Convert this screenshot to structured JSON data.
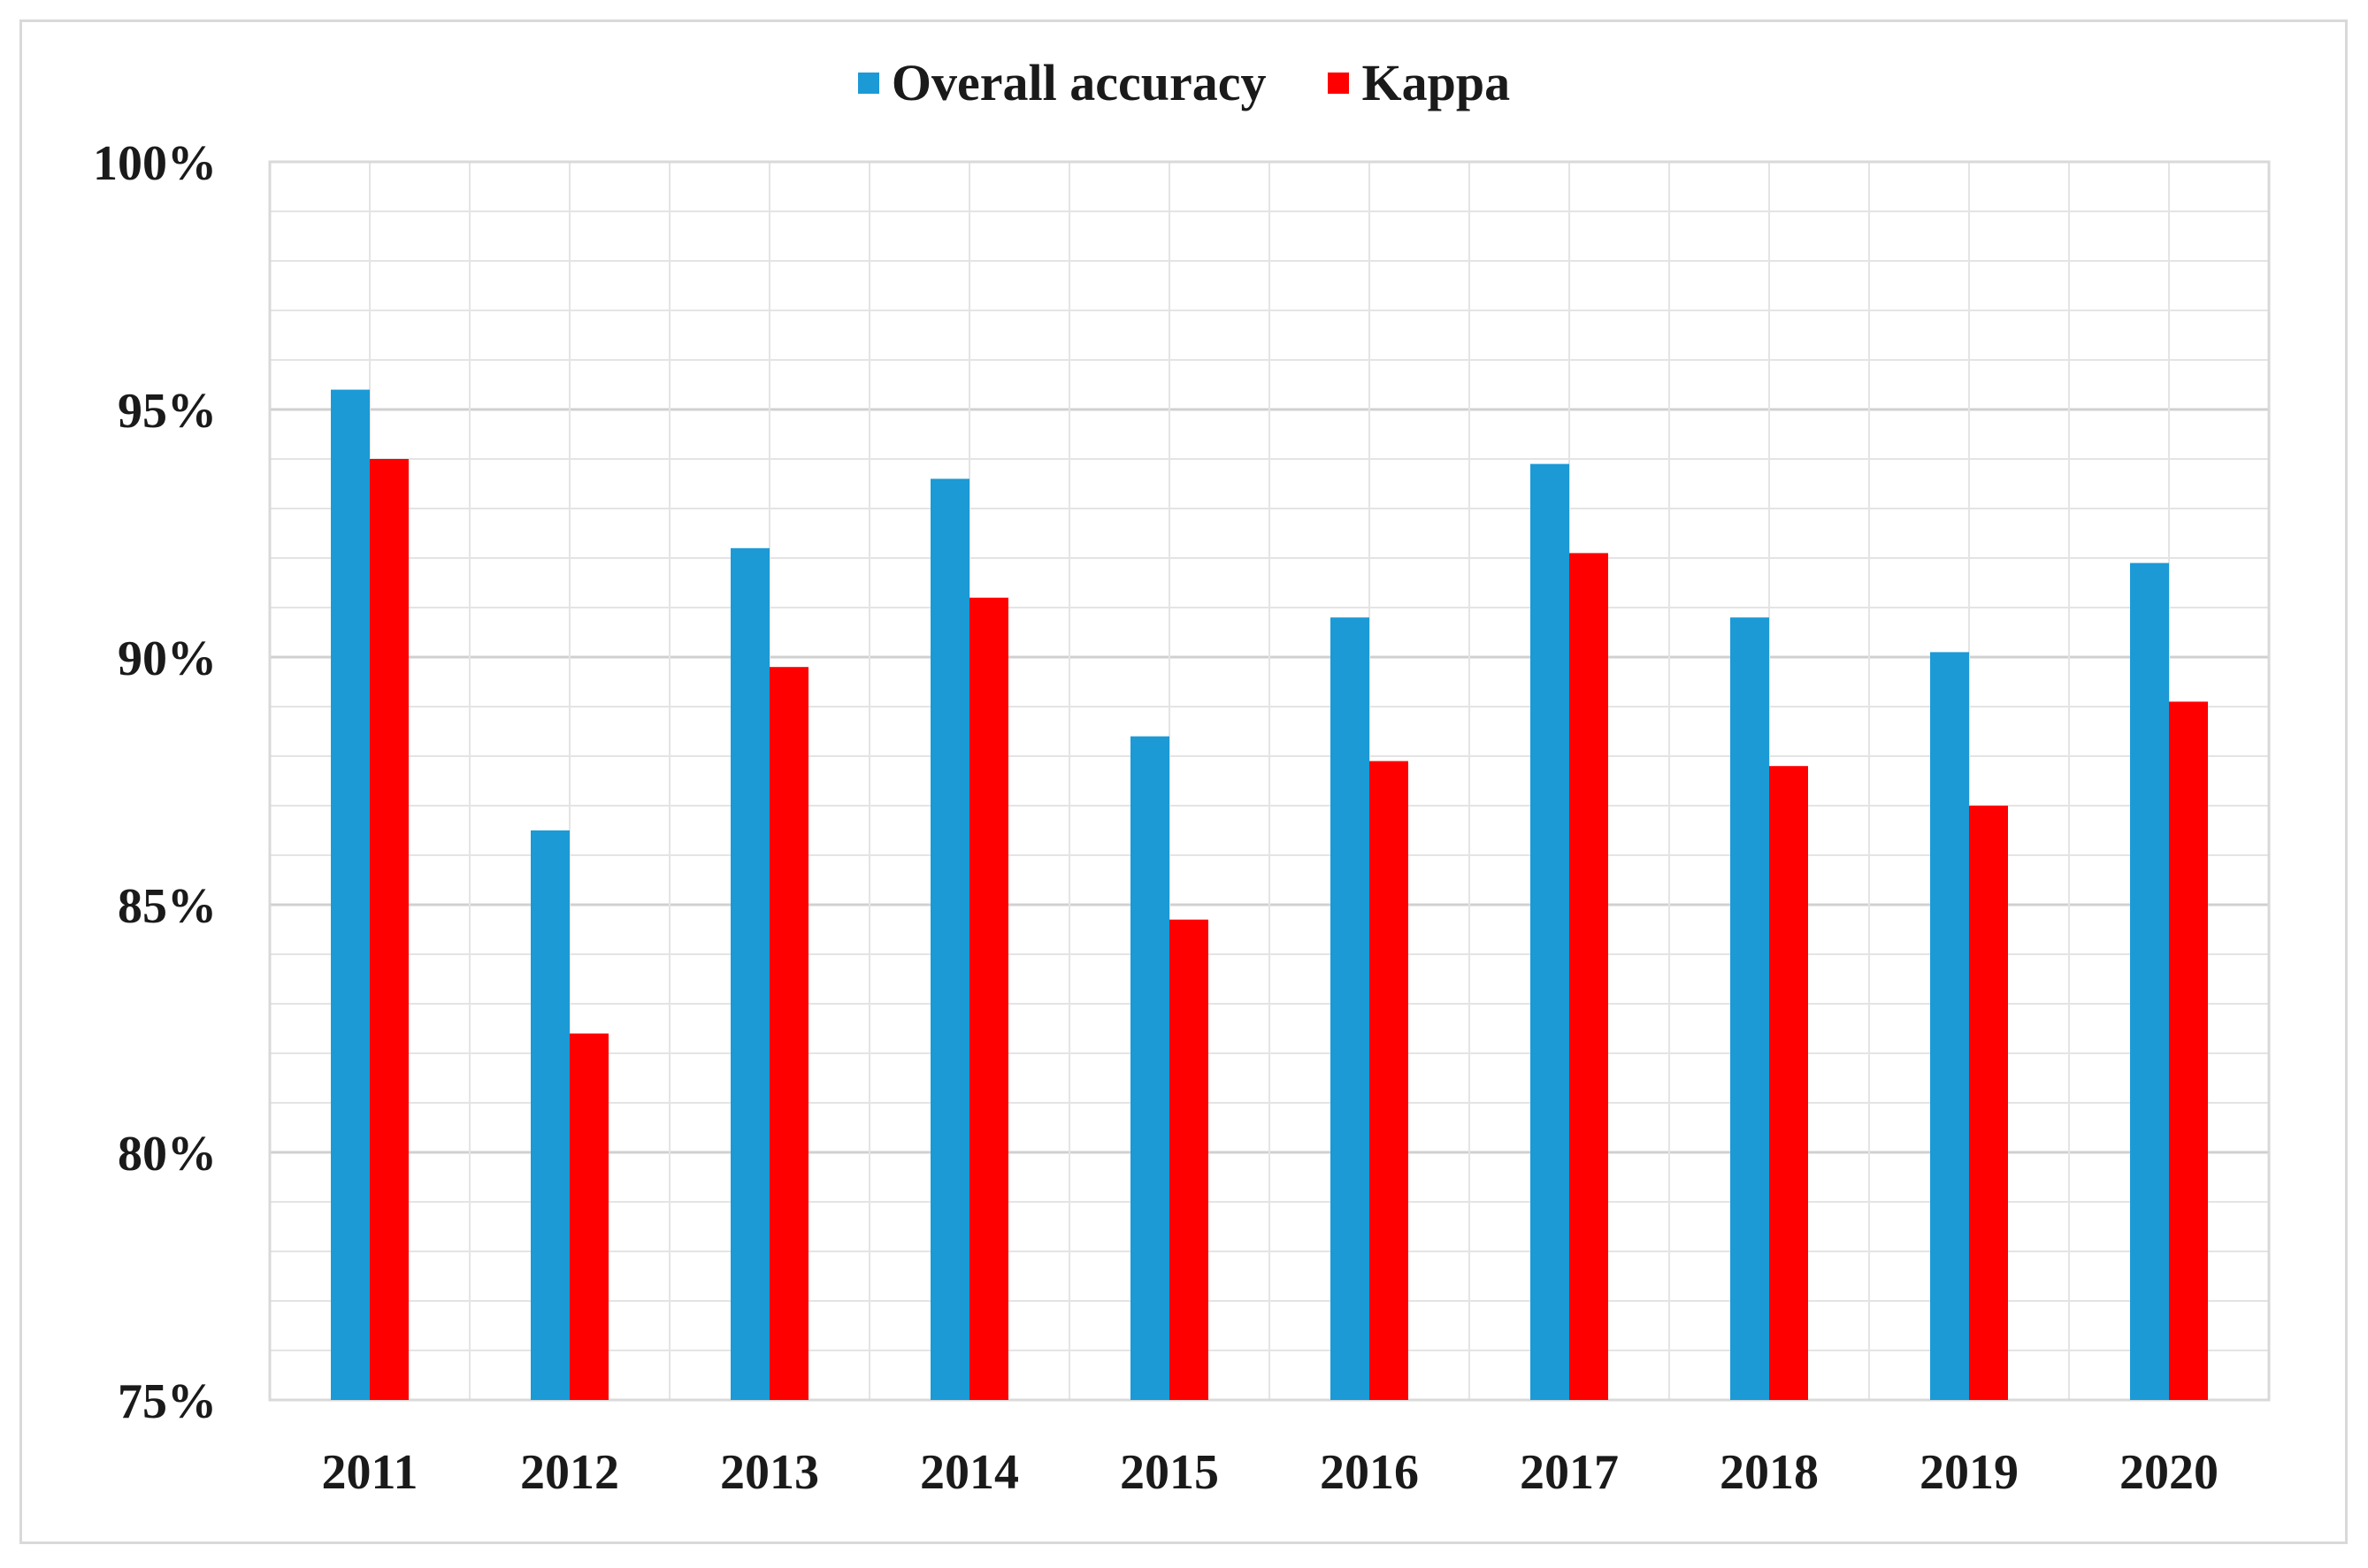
{
  "chart_data": {
    "type": "bar",
    "categories": [
      "2011",
      "2012",
      "2013",
      "2014",
      "2015",
      "2016",
      "2017",
      "2018",
      "2019",
      "2020"
    ],
    "series": [
      {
        "name": "Overall accuracy",
        "color": "#1b9ad6",
        "values": [
          95.4,
          86.5,
          92.2,
          93.6,
          88.4,
          90.8,
          93.9,
          90.8,
          90.1,
          91.9
        ]
      },
      {
        "name": "Kappa",
        "color": "#ff0000",
        "values": [
          94.0,
          82.4,
          89.8,
          91.2,
          84.7,
          87.9,
          92.1,
          87.8,
          87.0,
          89.1
        ]
      }
    ],
    "ylim": [
      75,
      100
    ],
    "yticks": [
      75,
      80,
      85,
      90,
      95,
      100
    ],
    "ytick_labels": [
      "75%",
      "80%",
      "85%",
      "90%",
      "95%",
      "100%"
    ],
    "legend_position": "top-center",
    "grid": true,
    "title": "",
    "xlabel": "",
    "ylabel": ""
  }
}
